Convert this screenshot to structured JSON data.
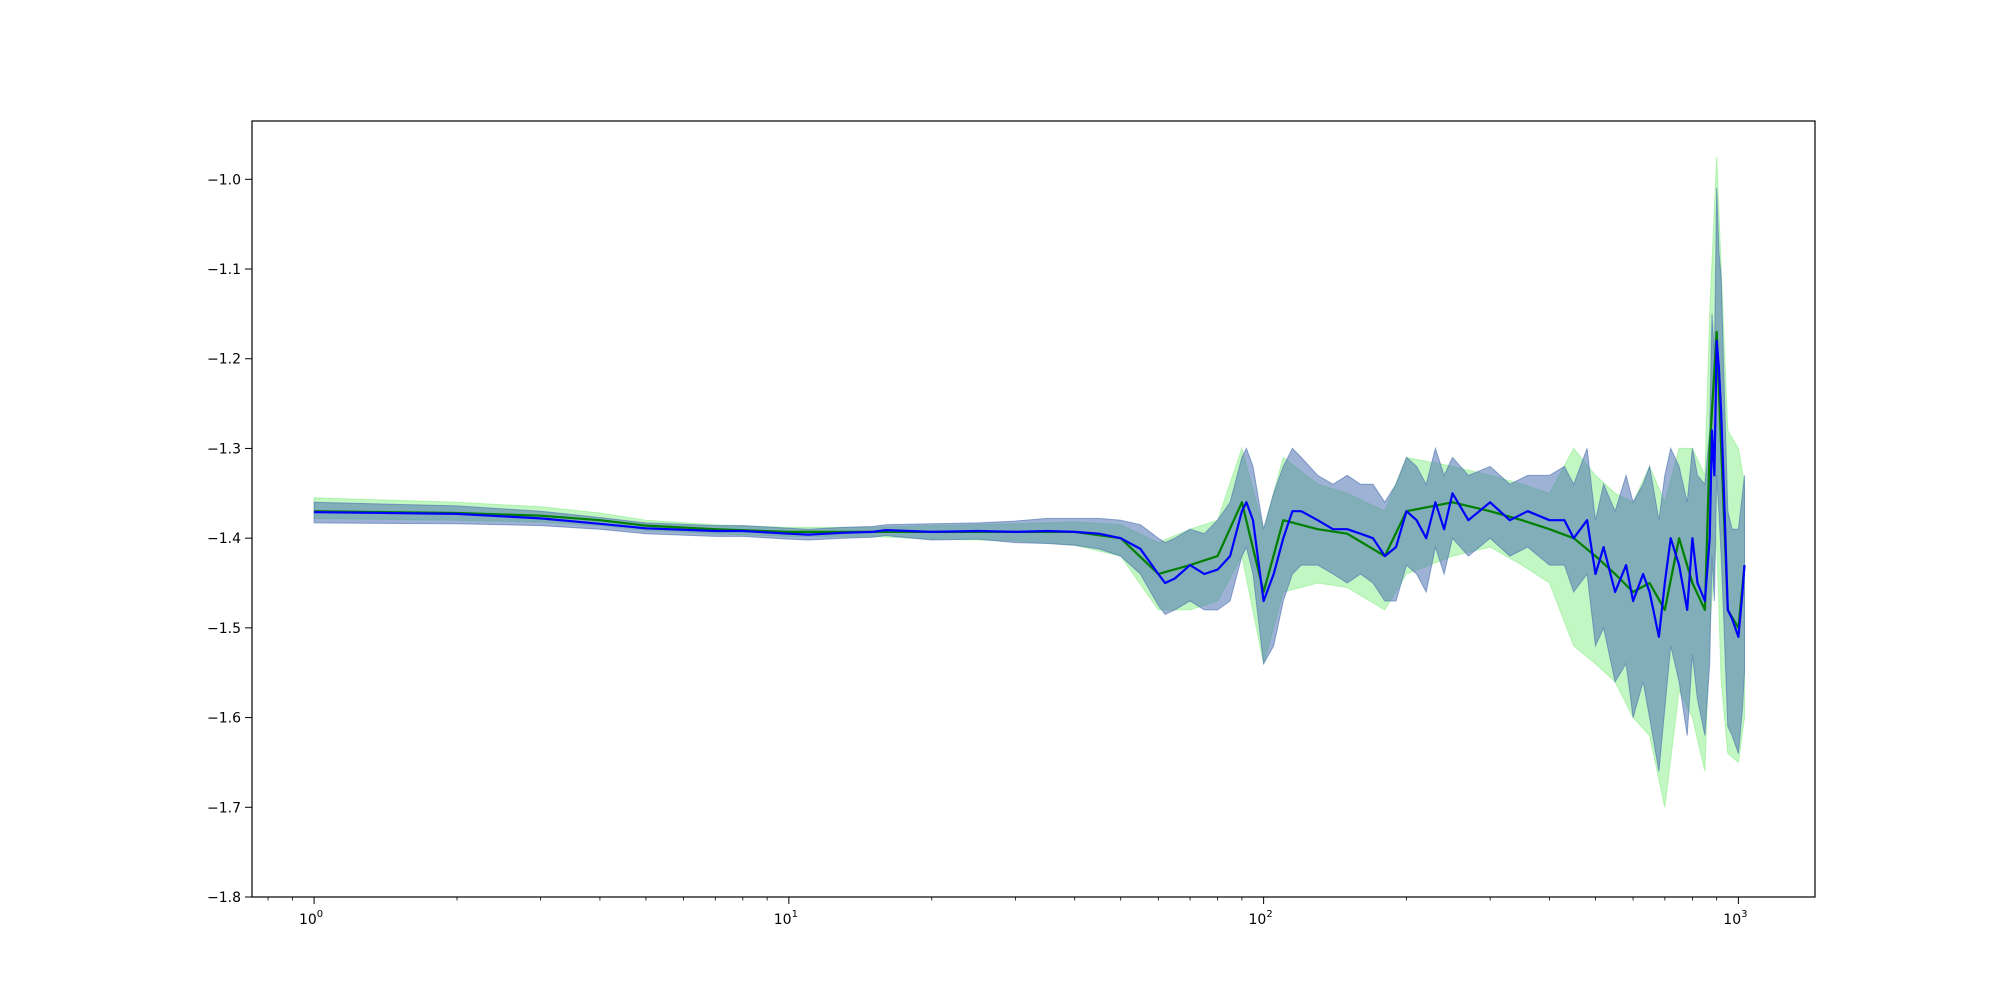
{
  "chart_data": {
    "type": "line",
    "title": "",
    "xlabel": "",
    "ylabel": "",
    "x_scale": "log",
    "xlim": [
      0.74,
      1450
    ],
    "ylim": [
      -1.8,
      -0.935
    ],
    "grid": false,
    "x_ticks": [
      {
        "value": 1,
        "base": "10",
        "exp": "0"
      },
      {
        "value": 10,
        "base": "10",
        "exp": "1"
      },
      {
        "value": 100,
        "base": "10",
        "exp": "2"
      },
      {
        "value": 1000,
        "base": "10",
        "exp": "3"
      }
    ],
    "y_ticks": [
      {
        "value": -1.0,
        "label": "−1.0"
      },
      {
        "value": -1.1,
        "label": "−1.1"
      },
      {
        "value": -1.2,
        "label": "−1.2"
      },
      {
        "value": -1.3,
        "label": "−1.3"
      },
      {
        "value": -1.4,
        "label": "−1.4"
      },
      {
        "value": -1.5,
        "label": "−1.5"
      },
      {
        "value": -1.6,
        "label": "−1.6"
      },
      {
        "value": -1.7,
        "label": "−1.7"
      },
      {
        "value": -1.8,
        "label": "−1.8"
      }
    ],
    "series": [
      {
        "color": "#008000",
        "band_color": "#90ee90",
        "x": [
          1,
          2,
          3,
          4,
          5,
          7,
          10,
          15,
          20,
          30,
          40,
          50,
          60,
          70,
          80,
          90,
          100,
          110,
          130,
          150,
          180,
          200,
          250,
          300,
          350,
          400,
          450,
          500,
          550,
          600,
          650,
          700,
          750,
          800,
          850,
          870,
          900,
          920,
          950,
          1000,
          1030
        ],
        "y": [
          -1.37,
          -1.372,
          -1.375,
          -1.38,
          -1.386,
          -1.39,
          -1.393,
          -1.393,
          -1.393,
          -1.393,
          -1.393,
          -1.4,
          -1.44,
          -1.43,
          -1.42,
          -1.36,
          -1.46,
          -1.38,
          -1.39,
          -1.395,
          -1.42,
          -1.37,
          -1.36,
          -1.37,
          -1.38,
          -1.39,
          -1.4,
          -1.42,
          -1.44,
          -1.46,
          -1.45,
          -1.48,
          -1.4,
          -1.45,
          -1.48,
          -1.3,
          -1.17,
          -1.3,
          -1.48,
          -1.5,
          -1.43
        ],
        "upper": [
          -1.355,
          -1.36,
          -1.365,
          -1.372,
          -1.38,
          -1.385,
          -1.388,
          -1.388,
          -1.386,
          -1.384,
          -1.382,
          -1.385,
          -1.405,
          -1.39,
          -1.38,
          -1.3,
          -1.39,
          -1.31,
          -1.34,
          -1.35,
          -1.37,
          -1.31,
          -1.32,
          -1.33,
          -1.34,
          -1.35,
          -1.3,
          -1.33,
          -1.35,
          -1.36,
          -1.32,
          -1.36,
          -1.3,
          -1.3,
          -1.33,
          -1.15,
          -0.975,
          -1.1,
          -1.28,
          -1.3,
          -1.34
        ],
        "lower": [
          -1.378,
          -1.38,
          -1.382,
          -1.386,
          -1.391,
          -1.395,
          -1.398,
          -1.398,
          -1.401,
          -1.403,
          -1.408,
          -1.42,
          -1.48,
          -1.48,
          -1.47,
          -1.42,
          -1.54,
          -1.46,
          -1.45,
          -1.455,
          -1.48,
          -1.44,
          -1.42,
          -1.41,
          -1.43,
          -1.45,
          -1.52,
          -1.54,
          -1.56,
          -1.6,
          -1.62,
          -1.7,
          -1.57,
          -1.6,
          -1.66,
          -1.5,
          -1.4,
          -1.56,
          -1.64,
          -1.65,
          -1.6
        ]
      },
      {
        "color": "#0000ff",
        "band_color": "#4c72b0",
        "x": [
          1,
          2,
          3,
          4,
          5,
          7,
          8,
          10,
          11,
          13,
          15,
          16,
          20,
          25,
          30,
          35,
          40,
          45,
          50,
          55,
          60,
          62,
          65,
          70,
          75,
          80,
          85,
          90,
          92,
          95,
          100,
          105,
          110,
          115,
          120,
          130,
          140,
          150,
          160,
          170,
          180,
          190,
          200,
          210,
          220,
          230,
          240,
          250,
          270,
          300,
          330,
          360,
          400,
          430,
          450,
          480,
          500,
          520,
          550,
          580,
          600,
          630,
          650,
          680,
          700,
          720,
          750,
          780,
          800,
          820,
          850,
          870,
          880,
          890,
          900,
          910,
          920,
          930,
          950,
          970,
          1000,
          1020,
          1030
        ],
        "y": [
          -1.371,
          -1.373,
          -1.378,
          -1.384,
          -1.389,
          -1.392,
          -1.392,
          -1.395,
          -1.396,
          -1.394,
          -1.393,
          -1.391,
          -1.393,
          -1.392,
          -1.393,
          -1.392,
          -1.393,
          -1.395,
          -1.4,
          -1.412,
          -1.44,
          -1.45,
          -1.445,
          -1.43,
          -1.44,
          -1.435,
          -1.42,
          -1.37,
          -1.36,
          -1.38,
          -1.47,
          -1.44,
          -1.4,
          -1.37,
          -1.37,
          -1.38,
          -1.39,
          -1.39,
          -1.395,
          -1.4,
          -1.42,
          -1.41,
          -1.37,
          -1.38,
          -1.4,
          -1.36,
          -1.39,
          -1.35,
          -1.38,
          -1.36,
          -1.38,
          -1.37,
          -1.38,
          -1.38,
          -1.4,
          -1.38,
          -1.44,
          -1.41,
          -1.46,
          -1.43,
          -1.47,
          -1.44,
          -1.46,
          -1.51,
          -1.45,
          -1.4,
          -1.43,
          -1.48,
          -1.4,
          -1.45,
          -1.47,
          -1.4,
          -1.28,
          -1.33,
          -1.18,
          -1.21,
          -1.26,
          -1.33,
          -1.48,
          -1.49,
          -1.51,
          -1.46,
          -1.43
        ],
        "upper": [
          -1.36,
          -1.364,
          -1.37,
          -1.377,
          -1.383,
          -1.386,
          -1.386,
          -1.389,
          -1.39,
          -1.388,
          -1.387,
          -1.385,
          -1.384,
          -1.383,
          -1.381,
          -1.378,
          -1.378,
          -1.378,
          -1.38,
          -1.385,
          -1.4,
          -1.405,
          -1.4,
          -1.39,
          -1.395,
          -1.38,
          -1.36,
          -1.31,
          -1.3,
          -1.32,
          -1.39,
          -1.35,
          -1.32,
          -1.3,
          -1.31,
          -1.33,
          -1.34,
          -1.33,
          -1.34,
          -1.34,
          -1.36,
          -1.34,
          -1.31,
          -1.32,
          -1.34,
          -1.3,
          -1.33,
          -1.31,
          -1.33,
          -1.32,
          -1.34,
          -1.33,
          -1.33,
          -1.32,
          -1.34,
          -1.3,
          -1.38,
          -1.34,
          -1.37,
          -1.33,
          -1.36,
          -1.34,
          -1.32,
          -1.38,
          -1.33,
          -1.3,
          -1.32,
          -1.36,
          -1.3,
          -1.33,
          -1.34,
          -1.28,
          -1.15,
          -1.2,
          -1.01,
          -1.08,
          -1.11,
          -1.2,
          -1.37,
          -1.39,
          -1.39,
          -1.35,
          -1.33
        ],
        "lower": [
          -1.383,
          -1.384,
          -1.386,
          -1.39,
          -1.395,
          -1.398,
          -1.398,
          -1.401,
          -1.402,
          -1.4,
          -1.399,
          -1.397,
          -1.402,
          -1.401,
          -1.405,
          -1.406,
          -1.408,
          -1.412,
          -1.42,
          -1.44,
          -1.475,
          -1.485,
          -1.48,
          -1.47,
          -1.48,
          -1.48,
          -1.47,
          -1.42,
          -1.41,
          -1.44,
          -1.54,
          -1.52,
          -1.47,
          -1.44,
          -1.43,
          -1.43,
          -1.44,
          -1.45,
          -1.44,
          -1.45,
          -1.47,
          -1.47,
          -1.43,
          -1.44,
          -1.46,
          -1.41,
          -1.44,
          -1.4,
          -1.42,
          -1.4,
          -1.42,
          -1.41,
          -1.43,
          -1.43,
          -1.46,
          -1.44,
          -1.52,
          -1.5,
          -1.56,
          -1.54,
          -1.6,
          -1.56,
          -1.6,
          -1.66,
          -1.59,
          -1.52,
          -1.56,
          -1.62,
          -1.53,
          -1.58,
          -1.62,
          -1.54,
          -1.42,
          -1.47,
          -1.33,
          -1.37,
          -1.42,
          -1.48,
          -1.61,
          -1.62,
          -1.64,
          -1.59,
          -1.55
        ]
      }
    ]
  }
}
